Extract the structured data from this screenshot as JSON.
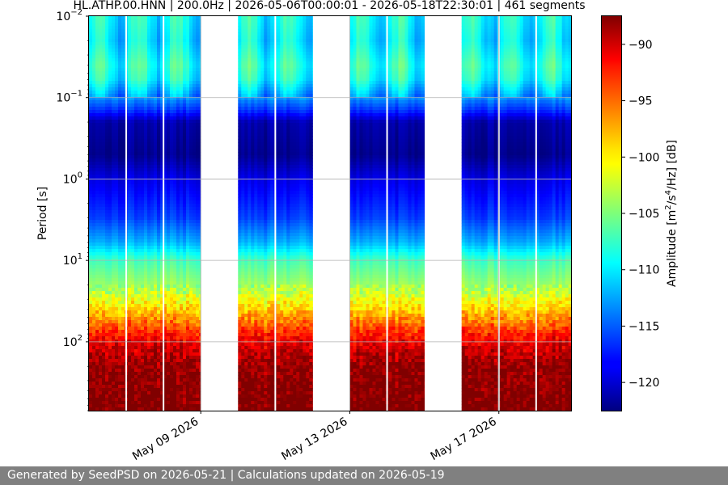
{
  "chart_data": {
    "type": "heatmap",
    "title": "HL.ATHP.00.HNN | 200.0Hz | 2026-05-06T00:00:01 - 2026-05-18T22:30:01 | 461 segments",
    "ylabel": "Period [s]",
    "xlabel": "",
    "y_scale": "log",
    "y_inverted": true,
    "ylim": [
      0.01,
      700
    ],
    "xlim": [
      "2026-05-06T00:00:01",
      "2026-05-18T22:30:01"
    ],
    "x_ticks": [
      {
        "date": "2026-05-09",
        "label": "May 09 2026"
      },
      {
        "date": "2026-05-13",
        "label": "May 13 2026"
      },
      {
        "date": "2026-05-17",
        "label": "May 17 2026"
      }
    ],
    "y_ticks": [
      {
        "value": 0.01,
        "base": "10",
        "exp": "−2"
      },
      {
        "value": 0.1,
        "base": "10",
        "exp": "−1"
      },
      {
        "value": 1,
        "base": "10",
        "exp": "0"
      },
      {
        "value": 10,
        "base": "10",
        "exp": "1"
      },
      {
        "value": 100,
        "base": "10",
        "exp": "2"
      }
    ],
    "data_segments": [
      {
        "start": "2026-05-06T00:00:01",
        "end": "2026-05-09T00:00:00"
      },
      {
        "start": "2026-05-10T00:00:00",
        "end": "2026-05-12T00:00:00"
      },
      {
        "start": "2026-05-13T00:00:00",
        "end": "2026-05-15T00:00:00"
      },
      {
        "start": "2026-05-16T00:00:00",
        "end": "2026-05-18T22:30:01"
      }
    ],
    "gap_lines": [
      "2026-05-07T00:00:00",
      "2026-05-08T00:00:00",
      "2026-05-11T00:00:00",
      "2026-05-14T00:00:00",
      "2026-05-17T00:00:00",
      "2026-05-18T00:00:00"
    ],
    "amplitude_profile_db": [
      {
        "period": 0.01,
        "db": -109
      },
      {
        "period": 0.02,
        "db": -110
      },
      {
        "period": 0.04,
        "db": -108
      },
      {
        "period": 0.06,
        "db": -109
      },
      {
        "period": 0.1,
        "db": -113
      },
      {
        "period": 0.15,
        "db": -117
      },
      {
        "period": 0.2,
        "db": -121
      },
      {
        "period": 0.5,
        "db": -122
      },
      {
        "period": 1,
        "db": -119
      },
      {
        "period": 3,
        "db": -116
      },
      {
        "period": 6,
        "db": -112
      },
      {
        "period": 10,
        "db": -107
      },
      {
        "period": 20,
        "db": -104
      },
      {
        "period": 40,
        "db": -99
      },
      {
        "period": 70,
        "db": -94
      },
      {
        "period": 100,
        "db": -91
      },
      {
        "period": 200,
        "db": -88
      },
      {
        "period": 700,
        "db": -87
      }
    ],
    "grid": true,
    "colorbar": {
      "label_main": "Amplitude [m",
      "label_sup1": "2",
      "label_mid": "/s",
      "label_sup2": "4",
      "label_end": "/Hz] [dB]",
      "vmin": -122.5,
      "vmax": -87.5,
      "ticks": [
        "−90",
        "−95",
        "−100",
        "−105",
        "−110",
        "−115",
        "−120"
      ],
      "tick_values": [
        -90,
        -95,
        -100,
        -105,
        -110,
        -115,
        -120
      ],
      "colormap": "jet"
    },
    "colors": {
      "gap": "#ffffff",
      "grid": "#b0b0b0"
    }
  },
  "footer": {
    "text": "Generated by SeedPSD on 2026-05-21 | Calculations updated on 2026-05-19"
  }
}
